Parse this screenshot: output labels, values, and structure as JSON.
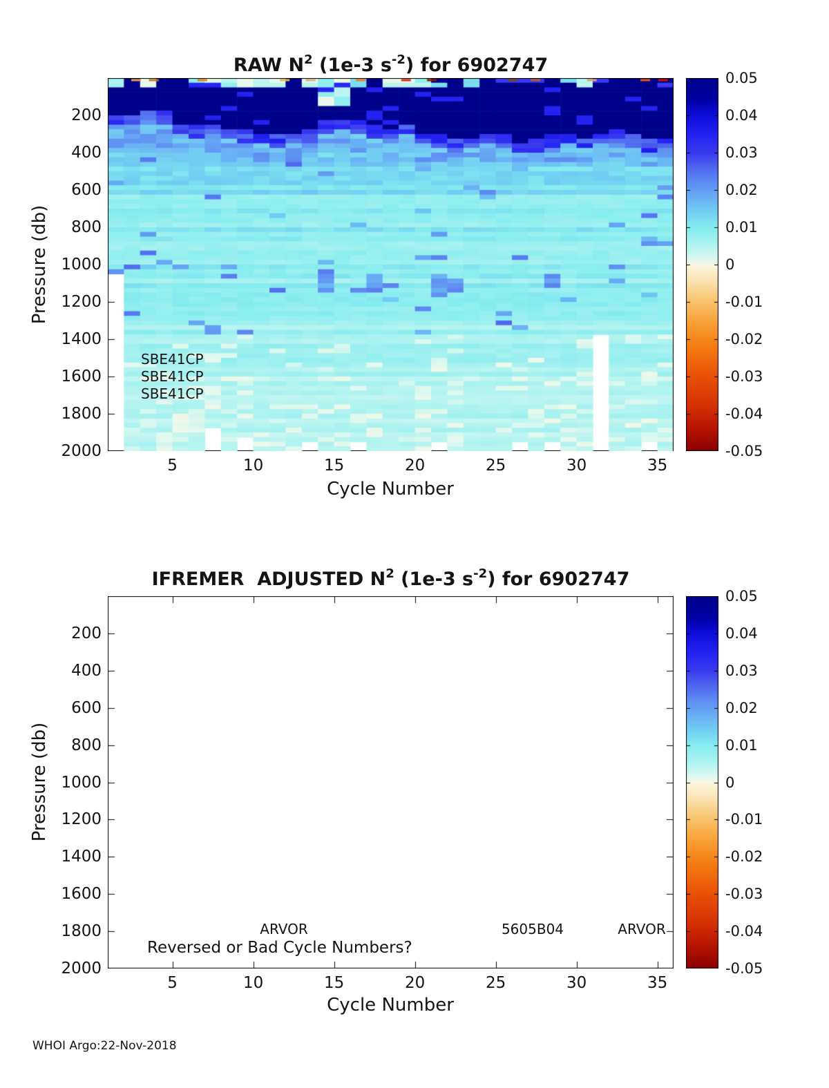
{
  "figure": {
    "footer": "WHOI Argo:22-Nov-2018",
    "background": "#ffffff"
  },
  "panels": {
    "top": {
      "title": {
        "prefix": "RAW N",
        "sup1": "2",
        "mid": " (1e-3 s",
        "sup2": "-2",
        "suffix": ") for 6902747"
      },
      "xlabel": "Cycle Number",
      "ylabel": "Pressure (db)",
      "x_tick_labels": [
        "5",
        "10",
        "15",
        "20",
        "25",
        "30",
        "35"
      ],
      "y_tick_labels": [
        "200",
        "400",
        "600",
        "800",
        "1000",
        "1200",
        "1400",
        "1600",
        "1800",
        "2000"
      ],
      "colorbar_tick_labels": [
        "0.05",
        "0.04",
        "0.03",
        "0.02",
        "0.01",
        "0",
        "-0.01",
        "-0.02",
        "-0.03",
        "-0.04",
        "-0.05"
      ],
      "annotations": {
        "sensor_labels": [
          "SBE41CP",
          "SBE41CP",
          "SBE41CP"
        ]
      }
    },
    "bottom": {
      "title": {
        "prefix": "IFREMER  ADJUSTED N",
        "sup1": "2",
        "mid": " (1e-3 s",
        "sup2": "-2",
        "suffix": ") for 6902747"
      },
      "xlabel": "Cycle Number",
      "ylabel": "Pressure (db)",
      "x_tick_labels": [
        "5",
        "10",
        "15",
        "20",
        "25",
        "30",
        "35"
      ],
      "y_tick_labels": [
        "200",
        "400",
        "600",
        "800",
        "1000",
        "1200",
        "1400",
        "1600",
        "1800",
        "2000"
      ],
      "colorbar_tick_labels": [
        "0.05",
        "0.04",
        "0.03",
        "0.02",
        "0.01",
        "0",
        "-0.01",
        "-0.02",
        "-0.03",
        "-0.04",
        "-0.05"
      ],
      "annotations": {
        "float_type_1": "ARVOR",
        "serial": "5605B04",
        "float_type_2": "ARVOR",
        "warning": "Reversed or Bad Cycle Numbers?"
      }
    }
  },
  "chart_data": [
    {
      "type": "heatmap",
      "title": "RAW N^2 (1e-3 s^-2) for 6902747",
      "xlabel": "Cycle Number",
      "ylabel": "Pressure (db)",
      "float_id": "6902747",
      "value_units": "1e-3 s^-2",
      "x_range": [
        1,
        36
      ],
      "y_range": [
        0,
        2000
      ],
      "y_orientation": "pressure increases downward",
      "x_ticks": [
        5,
        10,
        15,
        20,
        25,
        30,
        35
      ],
      "y_ticks": [
        200,
        400,
        600,
        800,
        1000,
        1200,
        1400,
        1600,
        1800,
        2000
      ],
      "n_cycles": 35,
      "depth_bin_db": 25,
      "colorbar": {
        "min": -0.05,
        "max": 0.05,
        "ticks": [
          0.05,
          0.04,
          0.03,
          0.02,
          0.01,
          0,
          -0.01,
          -0.02,
          -0.03,
          -0.04,
          -0.05
        ],
        "stops": [
          [
            0.05,
            "#00008B"
          ],
          [
            0.044,
            "#0000A6"
          ],
          [
            0.04,
            "#0E0EDC"
          ],
          [
            0.034,
            "#2727F5"
          ],
          [
            0.03,
            "#3A3AEE"
          ],
          [
            0.026,
            "#4E66F0"
          ],
          [
            0.022,
            "#5E8CF2"
          ],
          [
            0.018,
            "#68AEF4"
          ],
          [
            0.014,
            "#74CEF2"
          ],
          [
            0.01,
            "#84ECEF"
          ],
          [
            0.006,
            "#A8F2EF"
          ],
          [
            0.003,
            "#C8F6F0"
          ],
          [
            0.001,
            "#E4F8EE"
          ],
          [
            0.0,
            "#FBF8E2"
          ],
          [
            -0.004,
            "#FAE5B4"
          ],
          [
            -0.01,
            "#F9C26A"
          ],
          [
            -0.016,
            "#F79E33"
          ],
          [
            -0.022,
            "#F47B12"
          ],
          [
            -0.03,
            "#E85106"
          ],
          [
            -0.038,
            "#D63002"
          ],
          [
            -0.044,
            "#B51400"
          ],
          [
            -0.05,
            "#8B0000"
          ]
        ]
      },
      "mixed_layer_bottom_db": [
        190,
        200,
        175,
        185,
        240,
        255,
        250,
        265,
        280,
        300,
        310,
        295,
        280,
        235,
        225,
        240,
        255,
        270,
        245,
        290,
        305,
        330,
        320,
        300,
        310,
        340,
        330,
        305,
        290,
        320,
        300,
        285,
        310,
        330,
        315
      ],
      "shallow_pale_cycles": [
        3,
        6,
        7,
        8,
        9,
        10,
        11,
        13,
        14,
        15,
        18,
        19,
        20,
        30
      ],
      "deep_pale_cycles": [
        14,
        15
      ],
      "profile_db_value": [
        [
          200,
          0.022
        ],
        [
          350,
          0.016
        ],
        [
          500,
          0.0125
        ],
        [
          700,
          0.0105
        ],
        [
          900,
          0.0092
        ],
        [
          1100,
          0.0085
        ],
        [
          1400,
          0.0068
        ],
        [
          1700,
          0.0055
        ],
        [
          2000,
          0.0048
        ]
      ],
      "deep_blue_patches": [
        {
          "cycle": 14,
          "top_db": 1030,
          "bottom_db": 1150
        },
        {
          "cycle": 17,
          "top_db": 1060,
          "bottom_db": 1140
        },
        {
          "cycle": 21,
          "top_db": 1050,
          "bottom_db": 1170
        },
        {
          "cycle": 22,
          "top_db": 1080,
          "bottom_db": 1160
        },
        {
          "cycle": 28,
          "top_db": 1040,
          "bottom_db": 1130
        },
        {
          "cycle": 34,
          "top_db": 850,
          "bottom_db": 900
        }
      ],
      "surface_warm_spots": [
        {
          "cycle": 2.3,
          "color": "#E8A04A"
        },
        {
          "cycle": 3.4,
          "color": "#C8781E"
        },
        {
          "cycle": 6.4,
          "color": "#F08010"
        },
        {
          "cycle": 11.5,
          "color": "#E8B84B"
        },
        {
          "cycle": 13.1,
          "color": "#D2B48C"
        },
        {
          "cycle": 16.2,
          "color": "#F08010"
        },
        {
          "cycle": 19.0,
          "color": "#D92B10"
        },
        {
          "cycle": 20.6,
          "color": "#8B1A00"
        },
        {
          "cycle": 25.6,
          "color": "#7A4A12"
        },
        {
          "cycle": 27.0,
          "color": "#B5651D"
        },
        {
          "cycle": 30.5,
          "color": "#D2A679"
        },
        {
          "cycle": 33.8,
          "color": "#E8590C"
        },
        {
          "cycle": 34.9,
          "color": "#C81400"
        }
      ],
      "missing_data": {
        "cycle_1_below_db": 1050,
        "cycle_31_below_db": 1370,
        "bottom_notches": [
          {
            "cycle": 7,
            "top_db": 1880
          },
          {
            "cycle": 9,
            "top_db": 1930
          },
          {
            "cycle": 13,
            "top_db": 1945
          },
          {
            "cycle": 16,
            "top_db": 1950
          },
          {
            "cycle": 21,
            "top_db": 1945
          },
          {
            "cycle": 26,
            "top_db": 1950
          },
          {
            "cycle": 28,
            "top_db": 1940
          },
          {
            "cycle": 34,
            "top_db": 1950
          }
        ]
      },
      "noise_seed": 20181122,
      "annotations": [
        {
          "text": "SBE41CP",
          "cycle": 3,
          "pressure_db": 1510
        },
        {
          "text": "SBE41CP",
          "cycle": 3,
          "pressure_db": 1600
        },
        {
          "text": "SBE41CP",
          "cycle": 3,
          "pressure_db": 1690
        }
      ]
    },
    {
      "type": "heatmap",
      "title": "IFREMER  ADJUSTED N^2 (1e-3 s^-2) for 6902747",
      "xlabel": "Cycle Number",
      "ylabel": "Pressure (db)",
      "float_id": "6902747",
      "value_units": "1e-3 s^-2",
      "x_range": [
        1,
        36
      ],
      "y_range": [
        0,
        2000
      ],
      "x_ticks": [
        5,
        10,
        15,
        20,
        25,
        30,
        35
      ],
      "y_ticks": [
        200,
        400,
        600,
        800,
        1000,
        1200,
        1400,
        1600,
        1800,
        2000
      ],
      "data_plotted": "none (empty axes)",
      "colorbar": {
        "min": -0.05,
        "max": 0.05,
        "ticks": [
          0.05,
          0.04,
          0.03,
          0.02,
          0.01,
          0,
          -0.01,
          -0.02,
          -0.03,
          -0.04,
          -0.05
        ]
      },
      "annotations": [
        {
          "text": "ARVOR",
          "cycle": 11.9,
          "pressure_db": 1780
        },
        {
          "text": "5605B04",
          "cycle": 27.2,
          "pressure_db": 1780
        },
        {
          "text": "ARVOR",
          "cycle": 34.0,
          "pressure_db": 1780
        },
        {
          "text": "Reversed or Bad Cycle Numbers?",
          "cycle": 3.4,
          "pressure_db": 1890,
          "align": "left"
        }
      ]
    }
  ]
}
